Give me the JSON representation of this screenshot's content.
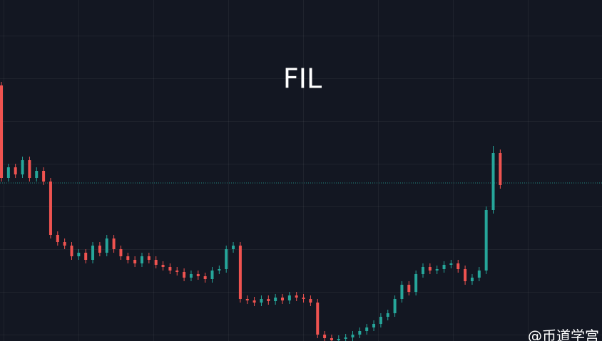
{
  "chart_data": {
    "type": "candlestick",
    "title": "FIL",
    "watermark": "@币道学宫",
    "up_color": "#26a69a",
    "down_color": "#ef5350",
    "price_line": 222,
    "price_line_color": "#26a69a",
    "ylim": [
      0,
      479
    ],
    "open": [
      359,
      229,
      244,
      234,
      254,
      229,
      239,
      224,
      149,
      139,
      134,
      119,
      124,
      114,
      134,
      124,
      144,
      129,
      119,
      114,
      109,
      119,
      114,
      107,
      104,
      99,
      97,
      89,
      94,
      91,
      87,
      99,
      101,
      129,
      134,
      59,
      57,
      54,
      59,
      56,
      61,
      57,
      64,
      61,
      59,
      54,
      9,
      4,
      1,
      3,
      5,
      9,
      14,
      19,
      24,
      34,
      39,
      59,
      79,
      69,
      94,
      104,
      99,
      101,
      107,
      109,
      101,
      84,
      89,
      99,
      184,
      264
    ],
    "high": [
      364,
      249,
      249,
      259,
      259,
      244,
      244,
      229,
      154,
      144,
      139,
      129,
      129,
      139,
      139,
      149,
      149,
      134,
      124,
      119,
      124,
      124,
      119,
      112,
      109,
      104,
      102,
      99,
      99,
      96,
      104,
      106,
      134,
      139,
      139,
      64,
      62,
      64,
      64,
      66,
      66,
      69,
      69,
      66,
      64,
      59,
      14,
      9,
      8,
      10,
      14,
      19,
      24,
      29,
      39,
      44,
      64,
      84,
      84,
      99,
      109,
      109,
      106,
      112,
      114,
      114,
      106,
      94,
      104,
      189,
      274,
      269
    ],
    "low": [
      224,
      224,
      229,
      229,
      224,
      224,
      219,
      144,
      134,
      129,
      114,
      114,
      109,
      109,
      119,
      119,
      124,
      114,
      109,
      104,
      104,
      109,
      102,
      99,
      94,
      92,
      84,
      84,
      86,
      82,
      82,
      94,
      96,
      124,
      54,
      52,
      49,
      49,
      51,
      51,
      52,
      52,
      56,
      54,
      49,
      4,
      -1,
      -4,
      -4,
      -2,
      0,
      4,
      9,
      14,
      19,
      29,
      34,
      54,
      64,
      64,
      89,
      94,
      94,
      96,
      102,
      96,
      79,
      79,
      84,
      94,
      179,
      214
    ],
    "close": [
      229,
      244,
      234,
      254,
      229,
      239,
      224,
      149,
      139,
      134,
      119,
      124,
      114,
      134,
      124,
      144,
      129,
      119,
      114,
      109,
      119,
      114,
      107,
      104,
      99,
      97,
      89,
      94,
      91,
      87,
      99,
      101,
      129,
      134,
      59,
      57,
      54,
      59,
      56,
      61,
      57,
      64,
      61,
      59,
      54,
      9,
      4,
      1,
      3,
      5,
      9,
      14,
      19,
      24,
      34,
      39,
      59,
      79,
      69,
      94,
      104,
      99,
      101,
      107,
      109,
      101,
      84,
      89,
      99,
      184,
      264,
      219
    ]
  }
}
